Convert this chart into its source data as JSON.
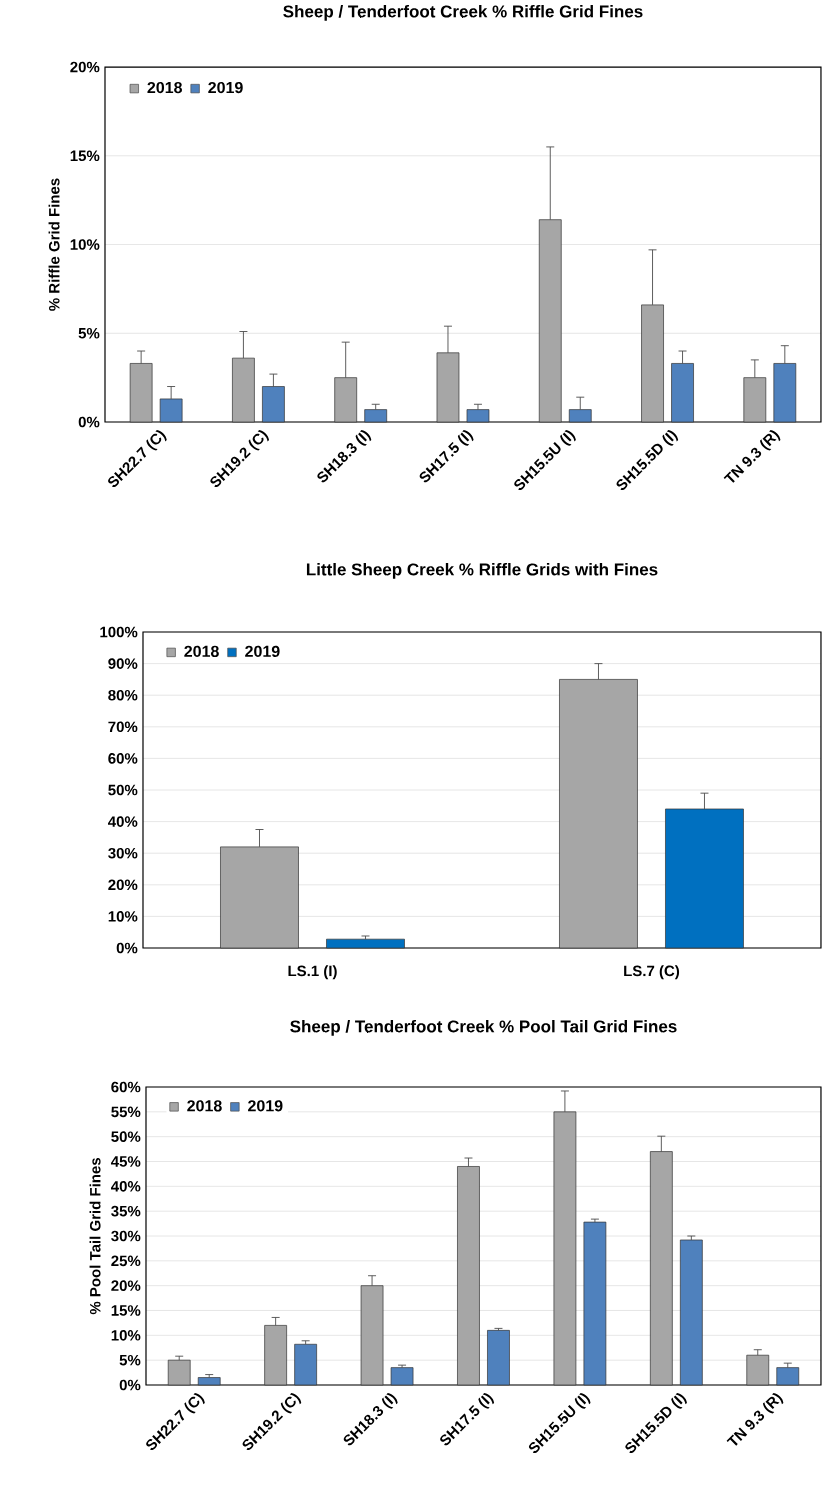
{
  "chart_data": [
    {
      "type": "bar",
      "title": "Sheep / Tenderfoot Creek % Riffle Grid Fines",
      "ylabel": "% Riffle Grid Fines",
      "categories": [
        "SH22.7 (C)",
        "SH19.2 (C)",
        "SH18.3 (I)",
        "SH17.5 (I)",
        "SH15.5U (I)",
        "SH15.5D (I)",
        "TN 9.3 (R)"
      ],
      "series": [
        {
          "name": "2018",
          "color": "#a6a6a6",
          "values": [
            3.3,
            3.6,
            2.5,
            3.9,
            11.4,
            6.6,
            2.5
          ],
          "errors": [
            [
              3.3,
              4.0
            ],
            [
              3.6,
              5.1
            ],
            [
              2.5,
              4.5
            ],
            [
              3.9,
              5.4
            ],
            [
              11.4,
              15.5
            ],
            [
              6.6,
              9.7
            ],
            [
              2.5,
              3.5
            ]
          ]
        },
        {
          "name": "2019",
          "color": "#4f81bd",
          "values": [
            1.3,
            2.0,
            0.7,
            0.7,
            0.7,
            3.3,
            3.3
          ],
          "errors": [
            [
              1.3,
              2.0
            ],
            [
              2.0,
              2.7
            ],
            [
              0.7,
              1.0
            ],
            [
              0.7,
              1.0
            ],
            [
              0.7,
              1.4
            ],
            [
              3.3,
              4.0
            ],
            [
              3.3,
              4.3
            ]
          ]
        }
      ],
      "ylim": [
        0,
        20
      ],
      "yticks": [
        {
          "value": 0,
          "label": "0%"
        },
        {
          "value": 5,
          "label": "5%"
        },
        {
          "value": 10,
          "label": "10%"
        },
        {
          "value": 15,
          "label": "15%"
        },
        {
          "value": 20,
          "label": "20%"
        }
      ],
      "grid": "y",
      "legend": "top left"
    },
    {
      "type": "bar",
      "title": "Little Sheep Creek % Riffle Grids with Fines",
      "categories": [
        "LS.1 (I)",
        "LS.7 (C)"
      ],
      "series": [
        {
          "name": "2018",
          "color": "#a6a6a6",
          "values": [
            32,
            85
          ],
          "errors": [
            [
              32,
              37.5
            ],
            [
              85,
              90
            ]
          ]
        },
        {
          "name": "2019",
          "color": "#0070c0",
          "values": [
            2.8,
            44
          ],
          "errors": [
            [
              2.8,
              3.8
            ],
            [
              44,
              49
            ]
          ]
        }
      ],
      "ylim": [
        0,
        100
      ],
      "yticks": [
        {
          "value": 0,
          "label": "0%"
        },
        {
          "value": 10,
          "label": "10%"
        },
        {
          "value": 20,
          "label": "20%"
        },
        {
          "value": 30,
          "label": "30%"
        },
        {
          "value": 40,
          "label": "40%"
        },
        {
          "value": 50,
          "label": "50%"
        },
        {
          "value": 60,
          "label": "60%"
        },
        {
          "value": 70,
          "label": "70%"
        },
        {
          "value": 80,
          "label": "80%"
        },
        {
          "value": 90,
          "label": "90%"
        },
        {
          "value": 100,
          "label": "100%"
        }
      ],
      "grid": "y",
      "legend": "top left"
    },
    {
      "type": "bar",
      "title": "Sheep / Tenderfoot Creek % Pool Tail Grid Fines",
      "ylabel": "% Pool Tail Grid Fines",
      "categories": [
        "SH22.7 (C)",
        "SH19.2 (C)",
        "SH18.3 (I)",
        "SH17.5 (I)",
        "SH15.5U (I)",
        "SH15.5D (I)",
        "TN 9.3 (R)"
      ],
      "series": [
        {
          "name": "2018",
          "color": "#a6a6a6",
          "values": [
            5,
            12,
            20,
            44,
            55,
            47,
            6
          ],
          "errors": [
            [
              5,
              5.8
            ],
            [
              12,
              13.6
            ],
            [
              20,
              22
            ],
            [
              44,
              45.7
            ],
            [
              55,
              59.2
            ],
            [
              47,
              50.1
            ],
            [
              6,
              7.1
            ]
          ]
        },
        {
          "name": "2019",
          "color": "#4f81bd",
          "values": [
            1.5,
            8.2,
            3.5,
            11,
            32.8,
            29.2,
            3.5
          ],
          "errors": [
            [
              1.5,
              2.1
            ],
            [
              8.2,
              8.9
            ],
            [
              3.5,
              4.0
            ],
            [
              11,
              11.4
            ],
            [
              32.8,
              33.4
            ],
            [
              29.2,
              30
            ],
            [
              3.5,
              4.4
            ]
          ]
        }
      ],
      "ylim": [
        0,
        60
      ],
      "yticks": [
        {
          "value": 0,
          "label": "0%"
        },
        {
          "value": 5,
          "label": "5%"
        },
        {
          "value": 10,
          "label": "10%"
        },
        {
          "value": 15,
          "label": "15%"
        },
        {
          "value": 20,
          "label": "20%"
        },
        {
          "value": 25,
          "label": "25%"
        },
        {
          "value": 30,
          "label": "30%"
        },
        {
          "value": 35,
          "label": "35%"
        },
        {
          "value": 40,
          "label": "40%"
        },
        {
          "value": 45,
          "label": "45%"
        },
        {
          "value": 50,
          "label": "50%"
        },
        {
          "value": 55,
          "label": "55%"
        },
        {
          "value": 60,
          "label": "60%"
        }
      ],
      "grid": "y",
      "legend": "top left"
    }
  ]
}
